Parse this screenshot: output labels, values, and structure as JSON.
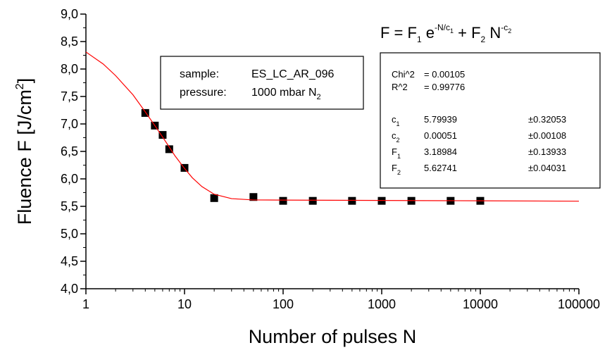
{
  "chart_data": {
    "type": "scatter",
    "xscale": "log",
    "xlim": [
      1,
      100000
    ],
    "xticks": [
      1,
      10,
      100,
      1000,
      10000,
      100000
    ],
    "ylim": [
      4,
      9
    ],
    "yticks": [
      {
        "value": 4,
        "label": "4,0"
      },
      {
        "value": 4.5,
        "label": "4,5"
      },
      {
        "value": 5,
        "label": "5,0"
      },
      {
        "value": 5.5,
        "label": "5,5"
      },
      {
        "value": 6,
        "label": "6,0"
      },
      {
        "value": 6.5,
        "label": "6,5"
      },
      {
        "value": 7,
        "label": "7,0"
      },
      {
        "value": 7.5,
        "label": "7,5"
      },
      {
        "value": 8,
        "label": "8,0"
      },
      {
        "value": 8.5,
        "label": "8,5"
      },
      {
        "value": 9,
        "label": "9,0"
      }
    ],
    "grid": false,
    "x_label": "Number of pulses N",
    "y_label": [
      "Fluence F [J/cm",
      "2",
      "]"
    ],
    "formula": [
      "F = F",
      "1",
      " e",
      "-N/c",
      "1",
      " + F",
      "2",
      " N",
      "-c",
      "2"
    ],
    "sample_box": {
      "sample_label": "sample:",
      "sample": "ES_LC_AR_096",
      "pressure_label": "pressure:",
      "pressure": [
        "1000 mbar N",
        "2"
      ]
    },
    "fit_box": {
      "chi2_label": "Chi^2",
      "chi2": "= 0.00105",
      "r2_label": "R^2",
      "r2": "= 0.99776",
      "params": [
        {
          "name": [
            "c",
            "1"
          ],
          "value": "5.79939",
          "error": "±0.32053"
        },
        {
          "name": [
            "c",
            "2"
          ],
          "value": "0.00051",
          "error": "±0.00108"
        },
        {
          "name": [
            "F",
            "1"
          ],
          "value": "3.18984",
          "error": "±0.13933"
        },
        {
          "name": [
            "F",
            "2"
          ],
          "value": "5.62741",
          "error": "±0.04031"
        }
      ]
    },
    "series": [
      {
        "type": "scatter",
        "marker": "square",
        "color": "#000000",
        "x": [
          4,
          5,
          6,
          7,
          10,
          20,
          50,
          100,
          200,
          500,
          1000,
          2000,
          5000,
          10000
        ],
        "values": [
          7.2,
          6.97,
          6.8,
          6.54,
          6.2,
          5.65,
          5.67,
          5.6,
          5.6,
          5.6,
          5.6,
          5.6,
          5.6,
          5.6
        ]
      },
      {
        "type": "line",
        "color": "#ff0000",
        "x": [
          1,
          1.5,
          2,
          3,
          4,
          5,
          6,
          7,
          8,
          10,
          12,
          15,
          20,
          30,
          50,
          100,
          1000,
          10000,
          100000
        ],
        "values": [
          8.31,
          8.09,
          7.88,
          7.53,
          7.22,
          6.97,
          6.76,
          6.58,
          6.42,
          6.19,
          6.02,
          5.86,
          5.72,
          5.64,
          5.616,
          5.614,
          5.607,
          5.601,
          5.594
        ]
      }
    ]
  }
}
